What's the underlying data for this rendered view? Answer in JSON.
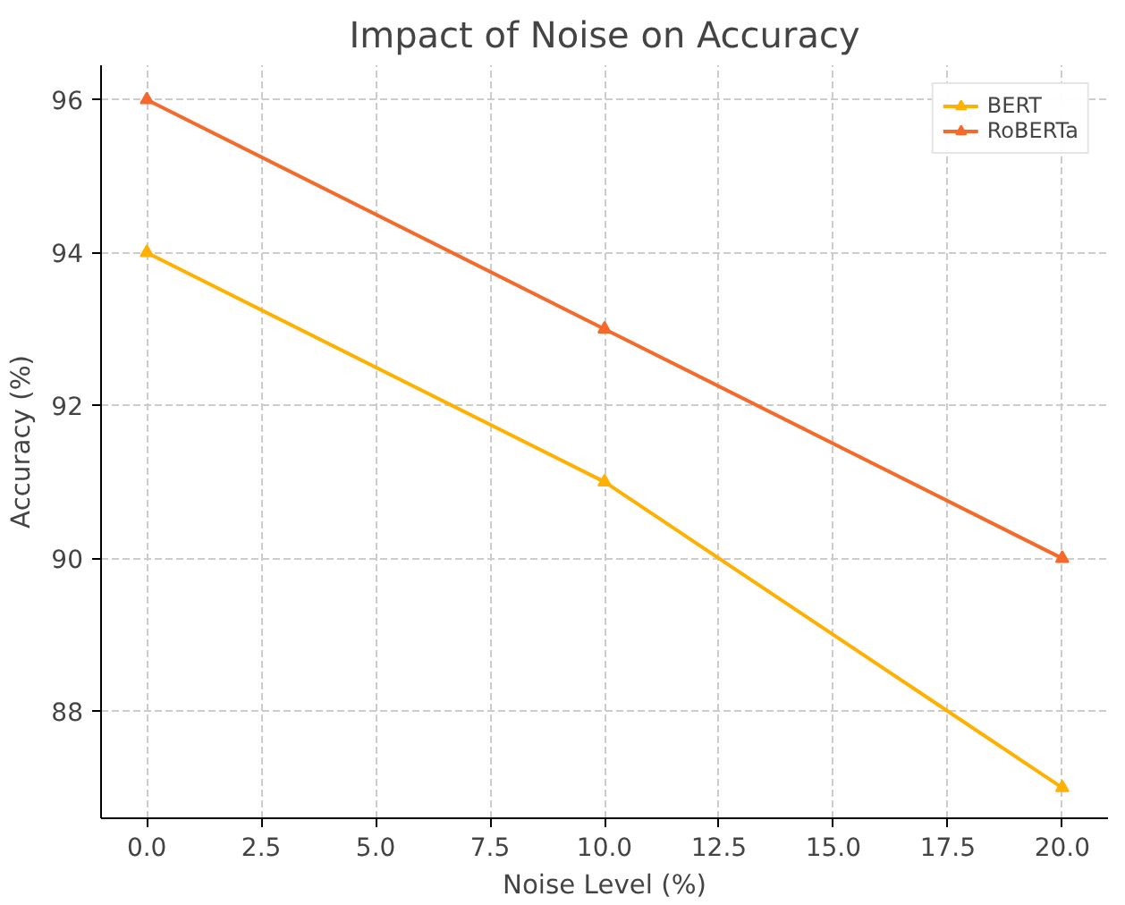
{
  "chart_data": {
    "type": "line",
    "title": "Impact of Noise on Accuracy",
    "xlabel": "Noise Level (%)",
    "ylabel": "Accuracy (%)",
    "x": [
      0,
      10,
      20
    ],
    "series": [
      {
        "name": "BERT",
        "color": "#ffb000",
        "values": [
          94,
          91,
          87
        ]
      },
      {
        "name": "RoBERTa",
        "color": "#f5692a",
        "values": [
          96,
          93,
          90
        ]
      }
    ],
    "xlim": [
      -1,
      21
    ],
    "ylim": [
      86.6,
      96.45
    ],
    "xticks": [
      {
        "value": 0,
        "label": "0.0"
      },
      {
        "value": 2.5,
        "label": "2.5"
      },
      {
        "value": 5,
        "label": "5.0"
      },
      {
        "value": 7.5,
        "label": "7.5"
      },
      {
        "value": 10,
        "label": "10.0"
      },
      {
        "value": 12.5,
        "label": "12.5"
      },
      {
        "value": 15,
        "label": "15.0"
      },
      {
        "value": 17.5,
        "label": "17.5"
      },
      {
        "value": 20,
        "label": "20.0"
      }
    ],
    "yticks": [
      88,
      90,
      92,
      94,
      96
    ],
    "grid": true,
    "legend": "top right",
    "marker": "triangle",
    "line_style": "solid"
  }
}
